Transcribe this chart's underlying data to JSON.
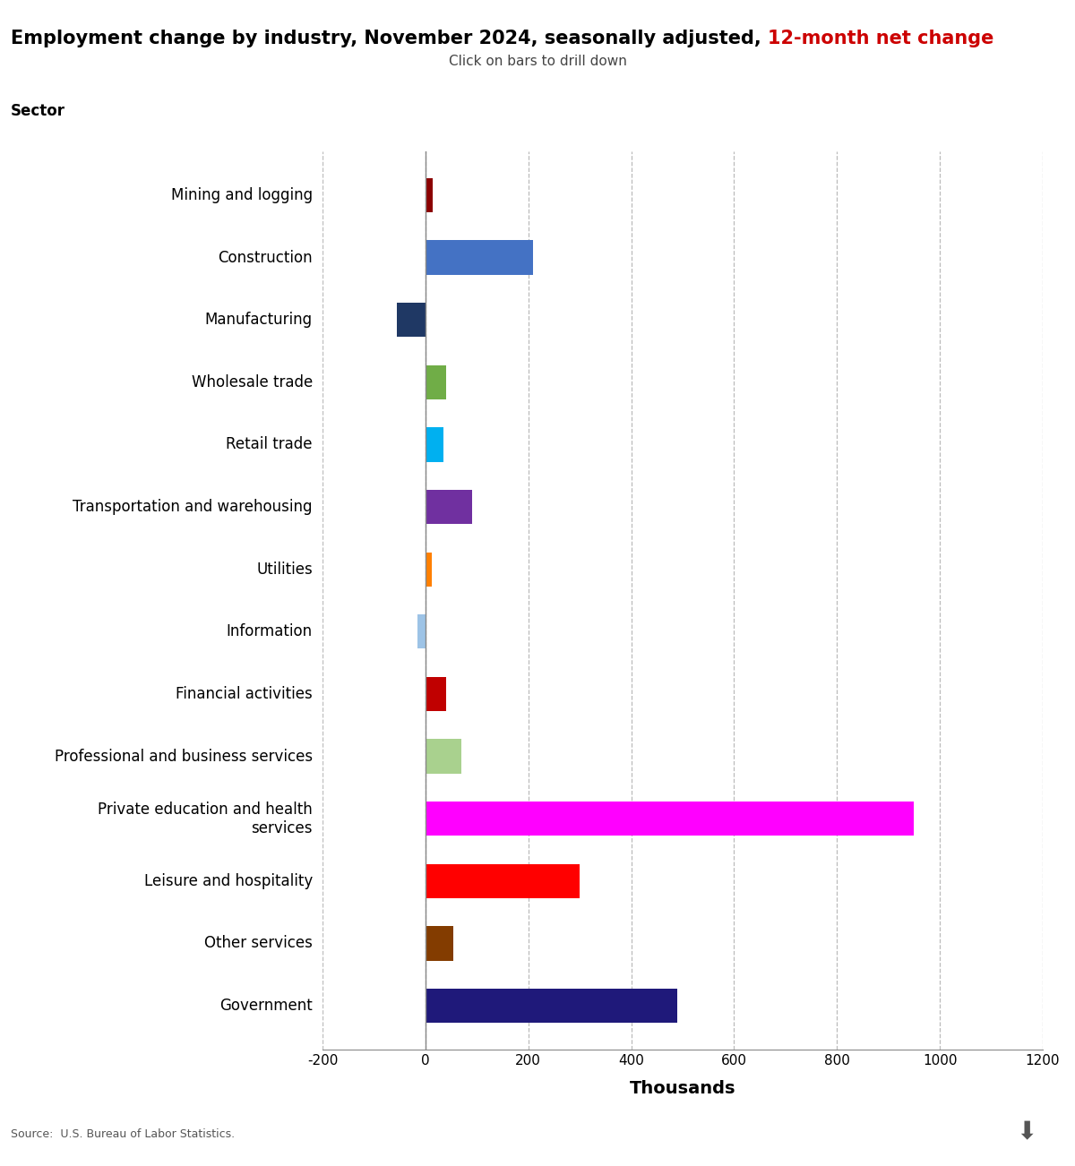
{
  "categories": [
    "Mining and logging",
    "Construction",
    "Manufacturing",
    "Wholesale trade",
    "Retail trade",
    "Transportation and warehousing",
    "Utilities",
    "Information",
    "Financial activities",
    "Professional and business services",
    "Private education and health\nservices",
    "Leisure and hospitality",
    "Other services",
    "Government"
  ],
  "values": [
    15,
    210,
    -55,
    40,
    35,
    90,
    12,
    -15,
    40,
    70,
    950,
    300,
    55,
    490
  ],
  "bar_colors": [
    "#8B0000",
    "#4472C4",
    "#1F3864",
    "#70AD47",
    "#00B0F0",
    "#7030A0",
    "#FF8000",
    "#9DC3E6",
    "#C00000",
    "#A9D18E",
    "#FF00FF",
    "#FF0000",
    "#833C00",
    "#1F197A"
  ],
  "title_black": "Employment change by industry, November 2024, seasonally adjusted, ",
  "title_red": "12-month net change",
  "subtitle": "Click on bars to drill down",
  "sector_label": "Sector",
  "xlabel": "Thousands",
  "xlim": [
    -200,
    1200
  ],
  "xticks": [
    -200,
    0,
    200,
    400,
    600,
    800,
    1000,
    1200
  ],
  "source": "Source:  U.S. Bureau of Labor Statistics.",
  "title_fontsize": 15,
  "subtitle_fontsize": 11,
  "label_fontsize": 12,
  "axis_fontsize": 11,
  "background_color": "#FFFFFF",
  "grid_color": "#BBBBBB"
}
